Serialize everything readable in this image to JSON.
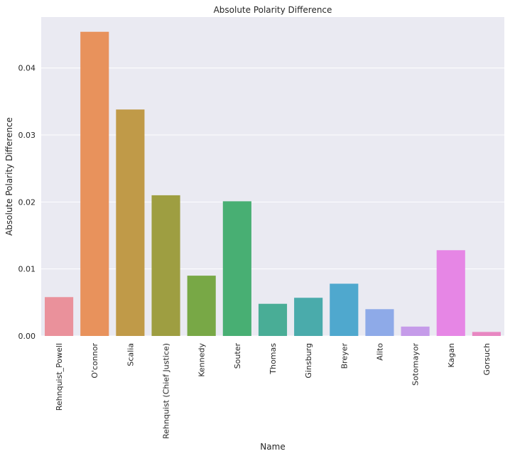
{
  "chart_data": {
    "type": "bar",
    "title": "Absolute Polarity Difference",
    "xlabel": "Name",
    "ylabel": "Absolute Polarity Difference",
    "categories": [
      "Rehnquist_Powell",
      "O'connor",
      "Scalia",
      "Rehnquist (Chief Justice)",
      "Kennedy",
      "Souter",
      "Thomas",
      "Ginsburg",
      "Breyer",
      "Alito",
      "Sotomayor",
      "Kagan",
      "Gorsuch"
    ],
    "values": [
      0.0058,
      0.0454,
      0.0338,
      0.021,
      0.009,
      0.0201,
      0.0048,
      0.0057,
      0.0078,
      0.004,
      0.0014,
      0.0128,
      0.0006
    ],
    "colors": [
      "#ea919b",
      "#e8925c",
      "#c09a48",
      "#9e9e41",
      "#78a846",
      "#48af73",
      "#49ad96",
      "#4aabab",
      "#4fa8ce",
      "#8eaae8",
      "#c59be9",
      "#e686e5",
      "#e887c2"
    ],
    "ylim": [
      0,
      0.0476
    ],
    "yticks": [
      0.0,
      0.01,
      0.02,
      0.03,
      0.04
    ],
    "ytick_labels": [
      "0.00",
      "0.01",
      "0.02",
      "0.03",
      "0.04"
    ],
    "grid": true,
    "background": "#eaeaf2"
  }
}
